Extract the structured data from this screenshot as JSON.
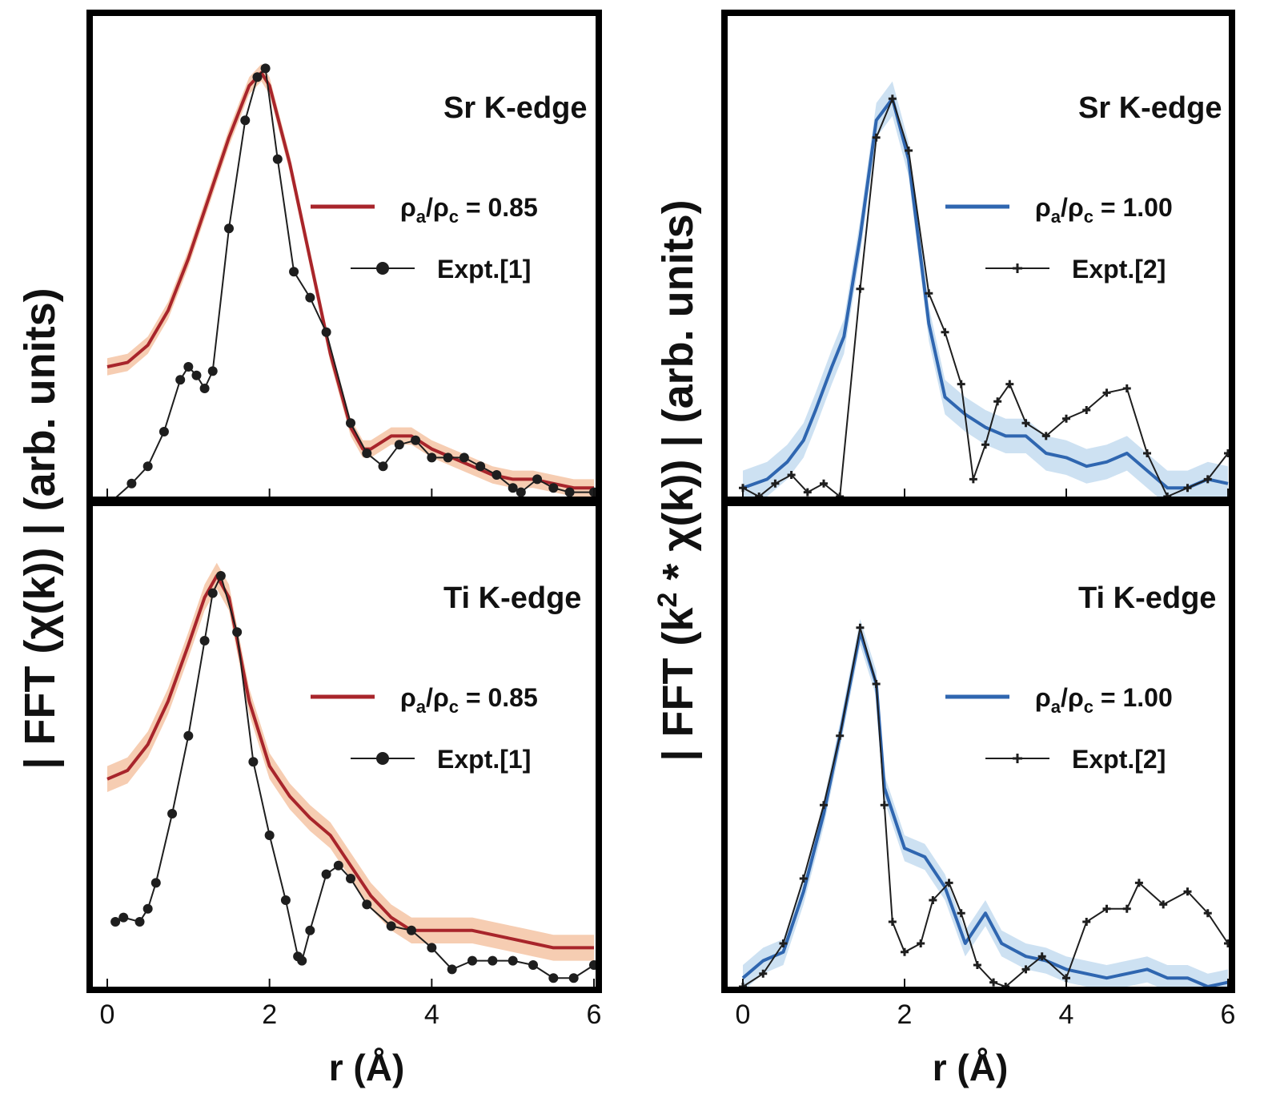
{
  "figure": {
    "left_ylabel": "| FFT (χ(k)) |    (arb. units)",
    "right_ylabel_prefix": "| FFT (k",
    "right_ylabel_sup": "2",
    "right_ylabel_suffix": " * χ(k)) |    (arb. units)",
    "xlabel": "r (Å)"
  },
  "colors": {
    "sim_red": "#a8252b",
    "band_red": "#f4c4a4",
    "sim_blue": "#2f66b0",
    "band_blue": "#c4dcf0",
    "expt": "#1e1e1e"
  },
  "chart_data": [
    {
      "type": "line",
      "panel": "top-left",
      "title": "Sr K-edge",
      "xlim": [
        0,
        6
      ],
      "ylim": [
        0,
        1
      ],
      "xticks": [
        0,
        2,
        4,
        6
      ],
      "xtick_labels": [
        "0",
        "2",
        "4",
        "6"
      ],
      "show_tick_labels": false,
      "legend": {
        "sim_label_main": "ρ",
        "sim_sub1": "a",
        "sim_sep": "/ρ",
        "sim_sub2": "c",
        "sim_value": " = 0.85",
        "expt_label": "Expt.[1]"
      },
      "series": [
        {
          "name": "ρa/ρc = 0.85",
          "kind": "sim",
          "color": "sim_red",
          "band": "band_red",
          "band_halfwidth": 0.02,
          "x": [
            0.0,
            0.25,
            0.5,
            0.75,
            1.0,
            1.25,
            1.5,
            1.75,
            1.9,
            2.0,
            2.25,
            2.5,
            2.75,
            3.0,
            3.15,
            3.25,
            3.5,
            3.75,
            4.0,
            4.25,
            4.5,
            4.75,
            5.0,
            5.25,
            5.5,
            5.75,
            6.0
          ],
          "y": [
            0.3,
            0.31,
            0.35,
            0.43,
            0.55,
            0.69,
            0.83,
            0.95,
            0.98,
            0.95,
            0.77,
            0.55,
            0.33,
            0.16,
            0.11,
            0.11,
            0.14,
            0.14,
            0.11,
            0.09,
            0.07,
            0.05,
            0.04,
            0.04,
            0.03,
            0.02,
            0.02
          ]
        },
        {
          "name": "Expt.[1]",
          "kind": "expt",
          "marker": "circle",
          "color": "expt",
          "x": [
            0.0,
            0.3,
            0.5,
            0.7,
            0.9,
            1.0,
            1.1,
            1.2,
            1.3,
            1.5,
            1.7,
            1.85,
            1.95,
            2.1,
            2.3,
            2.5,
            2.7,
            3.0,
            3.2,
            3.4,
            3.6,
            3.8,
            4.0,
            4.2,
            4.4,
            4.6,
            4.8,
            5.0,
            5.1,
            5.3,
            5.5,
            5.7,
            6.0
          ],
          "y": [
            -0.02,
            0.03,
            0.07,
            0.15,
            0.27,
            0.3,
            0.28,
            0.25,
            0.29,
            0.62,
            0.87,
            0.97,
            0.99,
            0.78,
            0.52,
            0.46,
            0.38,
            0.17,
            0.1,
            0.07,
            0.12,
            0.13,
            0.09,
            0.09,
            0.09,
            0.07,
            0.05,
            0.02,
            0.01,
            0.04,
            0.02,
            0.01,
            0.01
          ]
        }
      ]
    },
    {
      "type": "line",
      "panel": "top-right",
      "title": "Sr K-edge",
      "xlim": [
        0,
        6
      ],
      "ylim": [
        0,
        1
      ],
      "xticks": [
        0,
        2,
        4,
        6
      ],
      "xtick_labels": [
        "0",
        "2",
        "4",
        "6"
      ],
      "show_tick_labels": false,
      "legend": {
        "sim_label_main": "ρ",
        "sim_sub1": "a",
        "sim_sep": "/ρ",
        "sim_sub2": "c",
        "sim_value": " = 1.00",
        "expt_label": "Expt.[2]"
      },
      "series": [
        {
          "name": "ρa/ρc = 1.00",
          "kind": "sim",
          "color": "sim_blue",
          "band": "band_blue",
          "band_halfwidth": 0.04,
          "x": [
            0.0,
            0.3,
            0.55,
            0.75,
            0.9,
            1.1,
            1.25,
            1.45,
            1.65,
            1.85,
            2.05,
            2.3,
            2.5,
            2.75,
            3.0,
            3.25,
            3.5,
            3.75,
            4.0,
            4.25,
            4.5,
            4.75,
            5.0,
            5.25,
            5.5,
            5.75,
            6.0
          ],
          "y": [
            0.02,
            0.04,
            0.08,
            0.13,
            0.2,
            0.3,
            0.37,
            0.6,
            0.87,
            0.92,
            0.78,
            0.4,
            0.23,
            0.19,
            0.16,
            0.14,
            0.14,
            0.1,
            0.09,
            0.07,
            0.08,
            0.1,
            0.06,
            0.02,
            0.02,
            0.04,
            0.03
          ]
        },
        {
          "name": "Expt.[2]",
          "kind": "expt",
          "marker": "plus",
          "color": "expt",
          "x": [
            0.0,
            0.2,
            0.4,
            0.6,
            0.8,
            1.0,
            1.2,
            1.45,
            1.65,
            1.85,
            2.05,
            2.3,
            2.5,
            2.7,
            2.85,
            3.0,
            3.15,
            3.3,
            3.5,
            3.75,
            4.0,
            4.25,
            4.5,
            4.75,
            5.0,
            5.25,
            5.5,
            5.75,
            6.0
          ],
          "y": [
            0.02,
            0.0,
            0.03,
            0.05,
            0.01,
            0.03,
            0.0,
            0.48,
            0.83,
            0.92,
            0.8,
            0.47,
            0.38,
            0.26,
            0.04,
            0.12,
            0.22,
            0.26,
            0.17,
            0.14,
            0.18,
            0.2,
            0.24,
            0.25,
            0.1,
            0.0,
            0.02,
            0.04,
            0.1
          ]
        }
      ]
    },
    {
      "type": "line",
      "panel": "bottom-left",
      "title": "Ti K-edge",
      "xlim": [
        0,
        6
      ],
      "ylim": [
        0,
        1
      ],
      "xticks": [
        0,
        2,
        4,
        6
      ],
      "xtick_labels": [
        "0",
        "2",
        "4",
        "6"
      ],
      "show_tick_labels": true,
      "legend": {
        "sim_label_main": "ρ",
        "sim_sub1": "a",
        "sim_sep": "/ρ",
        "sim_sub2": "c",
        "sim_value": " = 0.85",
        "expt_label": "Expt.[1]"
      },
      "series": [
        {
          "name": "ρa/ρc = 0.85",
          "kind": "sim",
          "color": "sim_red",
          "band": "band_red",
          "band_halfwidth": 0.03,
          "x": [
            0.0,
            0.25,
            0.5,
            0.75,
            1.0,
            1.2,
            1.35,
            1.5,
            1.75,
            2.0,
            2.25,
            2.5,
            2.75,
            3.0,
            3.25,
            3.5,
            3.75,
            4.0,
            4.25,
            4.5,
            4.75,
            5.0,
            5.25,
            5.5,
            5.75,
            6.0
          ],
          "y": [
            0.48,
            0.5,
            0.56,
            0.66,
            0.79,
            0.9,
            0.95,
            0.9,
            0.66,
            0.51,
            0.44,
            0.39,
            0.35,
            0.28,
            0.21,
            0.16,
            0.13,
            0.13,
            0.13,
            0.13,
            0.12,
            0.11,
            0.1,
            0.09,
            0.09,
            0.09
          ]
        },
        {
          "name": "Expt.[1]",
          "kind": "expt",
          "marker": "circle",
          "color": "expt",
          "x": [
            0.1,
            0.2,
            0.4,
            0.5,
            0.6,
            0.8,
            1.0,
            1.2,
            1.3,
            1.4,
            1.6,
            1.8,
            2.0,
            2.2,
            2.35,
            2.4,
            2.5,
            2.7,
            2.85,
            3.0,
            3.2,
            3.5,
            3.75,
            4.0,
            4.25,
            4.5,
            4.75,
            5.0,
            5.25,
            5.5,
            5.75,
            6.0
          ],
          "y": [
            0.15,
            0.16,
            0.15,
            0.18,
            0.24,
            0.4,
            0.58,
            0.8,
            0.91,
            0.95,
            0.82,
            0.52,
            0.35,
            0.2,
            0.07,
            0.06,
            0.13,
            0.26,
            0.28,
            0.25,
            0.19,
            0.14,
            0.13,
            0.09,
            0.04,
            0.06,
            0.06,
            0.06,
            0.05,
            0.02,
            0.02,
            0.05
          ]
        }
      ]
    },
    {
      "type": "line",
      "panel": "bottom-right",
      "title": "Ti K-edge",
      "xlim": [
        0,
        6
      ],
      "ylim": [
        0,
        1
      ],
      "xticks": [
        0,
        2,
        4,
        6
      ],
      "xtick_labels": [
        "0",
        "2",
        "4",
        "6"
      ],
      "show_tick_labels": true,
      "legend": {
        "sim_label_main": "ρ",
        "sim_sub1": "a",
        "sim_sep": "/ρ",
        "sim_sub2": "c",
        "sim_value": " = 1.00",
        "expt_label": "Expt.[2]"
      },
      "series": [
        {
          "name": "ρa/ρc = 1.00",
          "kind": "sim",
          "color": "sim_blue",
          "band": "band_blue",
          "band_halfwidth": 0.03,
          "x": [
            0.0,
            0.25,
            0.5,
            0.75,
            1.0,
            1.2,
            1.45,
            1.65,
            1.75,
            2.0,
            2.25,
            2.5,
            2.75,
            3.0,
            3.2,
            3.5,
            3.75,
            4.0,
            4.25,
            4.5,
            4.75,
            5.0,
            5.25,
            5.5,
            5.75,
            6.0
          ],
          "y": [
            0.02,
            0.06,
            0.08,
            0.22,
            0.4,
            0.58,
            0.82,
            0.7,
            0.46,
            0.32,
            0.3,
            0.23,
            0.1,
            0.17,
            0.1,
            0.07,
            0.06,
            0.04,
            0.03,
            0.02,
            0.03,
            0.04,
            0.02,
            0.02,
            0.0,
            0.01
          ]
        },
        {
          "name": "Expt.[2]",
          "kind": "expt",
          "marker": "plus",
          "color": "expt",
          "x": [
            0.0,
            0.25,
            0.5,
            0.75,
            1.0,
            1.2,
            1.45,
            1.65,
            1.75,
            1.85,
            2.0,
            2.2,
            2.35,
            2.55,
            2.7,
            2.9,
            3.1,
            3.25,
            3.5,
            3.7,
            4.0,
            4.25,
            4.5,
            4.75,
            4.9,
            5.2,
            5.5,
            5.75,
            6.0
          ],
          "y": [
            0.0,
            0.03,
            0.1,
            0.25,
            0.42,
            0.58,
            0.83,
            0.7,
            0.42,
            0.15,
            0.08,
            0.1,
            0.2,
            0.24,
            0.17,
            0.05,
            0.01,
            0.0,
            0.04,
            0.07,
            0.02,
            0.15,
            0.18,
            0.18,
            0.24,
            0.19,
            0.22,
            0.17,
            0.1
          ]
        }
      ]
    }
  ]
}
